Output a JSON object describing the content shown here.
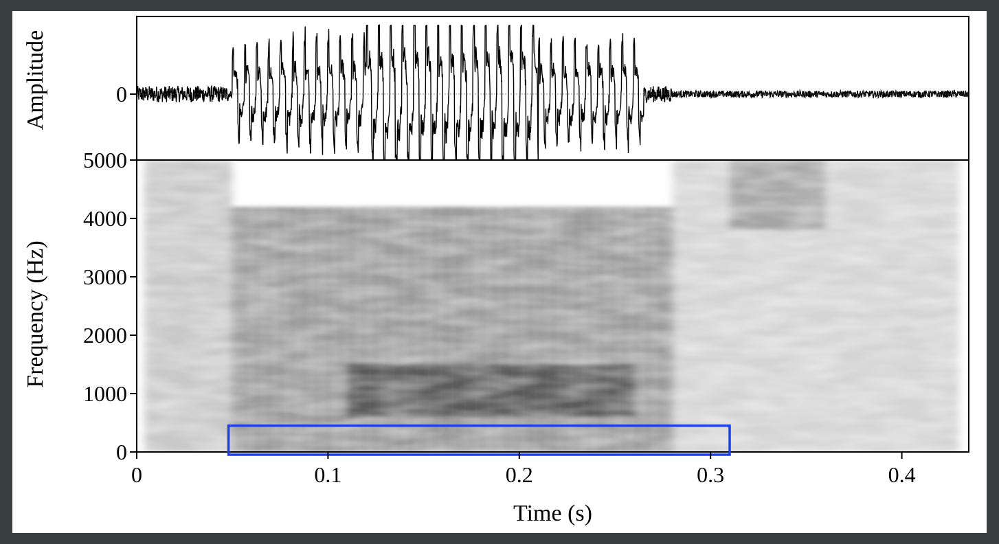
{
  "chart_data": [
    {
      "type": "line",
      "panel": "waveform",
      "ylabel": "Amplitude",
      "y_ticks": [
        {
          "value": 0,
          "label": "0"
        }
      ],
      "xlim": [
        0,
        0.435
      ],
      "zero_line": true,
      "series_color": "#000000",
      "segments": [
        {
          "t_start": 0.0,
          "t_end": 0.048,
          "relative_amplitude": 0.12,
          "kind": "noise"
        },
        {
          "t_start": 0.05,
          "t_end": 0.075,
          "relative_amplitude": 0.6,
          "kind": "voicing onset"
        },
        {
          "t_start": 0.075,
          "t_end": 0.12,
          "relative_amplitude": 0.7,
          "kind": "periodic"
        },
        {
          "t_start": 0.12,
          "t_end": 0.21,
          "relative_amplitude": 1.0,
          "kind": "periodic"
        },
        {
          "t_start": 0.21,
          "t_end": 0.265,
          "relative_amplitude": 0.65,
          "kind": "periodic"
        },
        {
          "t_start": 0.265,
          "t_end": 0.28,
          "relative_amplitude": 0.12,
          "kind": "decay"
        },
        {
          "t_start": 0.28,
          "t_end": 0.435,
          "relative_amplitude": 0.05,
          "kind": "noise"
        }
      ]
    },
    {
      "type": "heatmap",
      "panel": "spectrogram",
      "xlabel": "Time (s)",
      "ylabel": "Frequency (Hz)",
      "xlim": [
        0,
        0.435
      ],
      "ylim": [
        0,
        5000
      ],
      "x_ticks": [
        {
          "value": 0,
          "label": "0"
        },
        {
          "value": 0.1,
          "label": "0.1"
        },
        {
          "value": 0.2,
          "label": "0.2"
        },
        {
          "value": 0.3,
          "label": "0.3"
        },
        {
          "value": 0.4,
          "label": "0.4"
        }
      ],
      "y_ticks": [
        {
          "value": 0,
          "label": "0"
        },
        {
          "value": 1000,
          "label": "1000"
        },
        {
          "value": 2000,
          "label": "2000"
        },
        {
          "value": 3000,
          "label": "3000"
        },
        {
          "value": 4000,
          "label": "4000"
        },
        {
          "value": 5000,
          "label": "5000"
        }
      ],
      "colormap": "grayscale (dark = high energy)",
      "regions": [
        {
          "t_start": 0.004,
          "t_end": 0.05,
          "f_min": 0,
          "f_max": 5000,
          "intensity": 0.45
        },
        {
          "t_start": 0.05,
          "t_end": 0.28,
          "f_min": 0,
          "f_max": 4200,
          "intensity": 0.75
        },
        {
          "t_start": 0.11,
          "t_end": 0.26,
          "f_min": 600,
          "f_max": 1500,
          "intensity": 1.0
        },
        {
          "t_start": 0.28,
          "t_end": 0.43,
          "f_min": 0,
          "f_max": 5000,
          "intensity": 0.35
        },
        {
          "t_start": 0.31,
          "t_end": 0.36,
          "f_min": 3800,
          "f_max": 5000,
          "intensity": 0.6
        }
      ],
      "highlight_box": {
        "color": "#1f3fe0",
        "t_start": 0.048,
        "t_end": 0.31,
        "f_min": 0,
        "f_max": 450
      }
    }
  ]
}
